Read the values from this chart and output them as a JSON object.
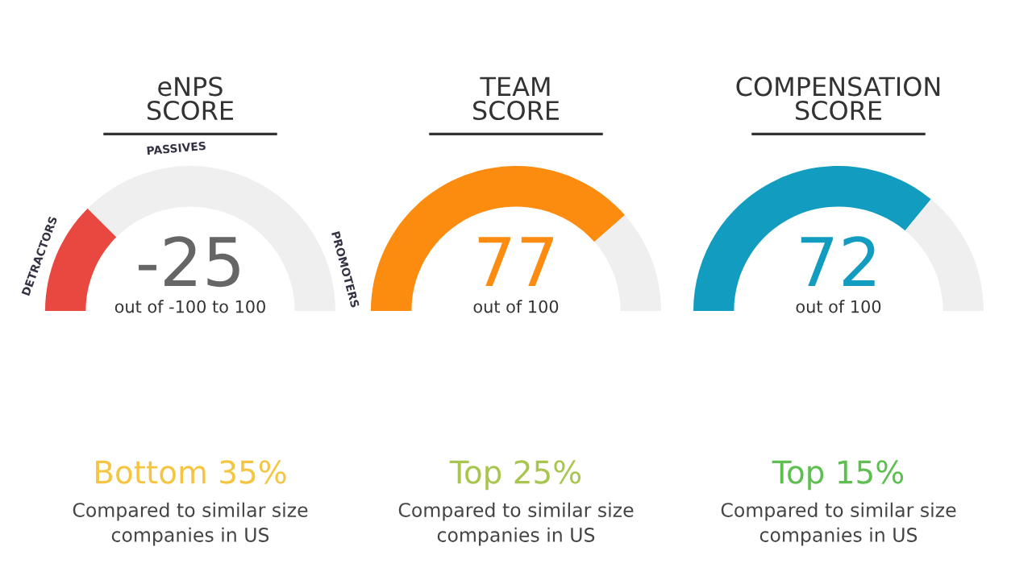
{
  "chart_data": [
    {
      "type": "donut",
      "title": "eNPS\nSCORE",
      "categories": [
        null,
        null
      ],
      "values": [
        25,
        75
      ],
      "colors": [
        "#e8483f",
        "#efefef"
      ],
      "annotations": [
        "-25",
        "out of -100 to 100",
        "Bottom 35%",
        "Compared to similar size\ncompanies in US",
        "DETRACTORS",
        "PASSIVES",
        "PROMOTERS"
      ]
    },
    {
      "type": "donut",
      "title": "TEAM\nSCORE",
      "categories": [
        null,
        null
      ],
      "values": [
        77,
        23
      ],
      "colors": [
        "#fb8c10",
        "#efefef"
      ],
      "annotations": [
        "77",
        "out of 100",
        "Top 25%",
        "Compared to similar size\ncompanies in US"
      ]
    },
    {
      "type": "donut",
      "title": "COMPENSATION\nSCORE",
      "categories": [
        null,
        null
      ],
      "values": [
        72,
        28
      ],
      "colors": [
        "#129cc0",
        "#efefef"
      ],
      "annotations": [
        "72",
        "out of 100",
        "Top 15%",
        "Compared to similar size\ncompanies in US"
      ]
    }
  ]
}
